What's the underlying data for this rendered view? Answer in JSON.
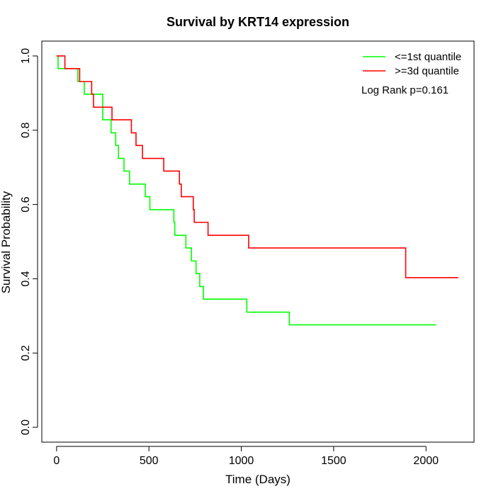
{
  "chart_data": {
    "type": "line",
    "title": "Survival by KRT14 expression",
    "xlabel": "Time (Days)",
    "ylabel": "Survival Probability",
    "xlim": [
      -80,
      2260
    ],
    "ylim": [
      -0.04,
      1.04
    ],
    "xticks": [
      0,
      500,
      1000,
      1500,
      2000
    ],
    "yticks": [
      0.0,
      0.2,
      0.4,
      0.6,
      0.8,
      1.0
    ],
    "xtick_labels": [
      "0",
      "500",
      "1000",
      "1500",
      "2000"
    ],
    "ytick_labels": [
      "0.0",
      "0.2",
      "0.4",
      "0.6",
      "0.8",
      "1.0"
    ],
    "grid": false,
    "legend_position": "top-right",
    "annotation": "Log Rank p=0.161",
    "series": [
      {
        "name": "<=1st quantile",
        "color": "#00ff00",
        "step": true,
        "points": [
          [
            0,
            1.0
          ],
          [
            8,
            0.966
          ],
          [
            115,
            0.931
          ],
          [
            150,
            0.897
          ],
          [
            250,
            0.828
          ],
          [
            295,
            0.793
          ],
          [
            320,
            0.759
          ],
          [
            335,
            0.724
          ],
          [
            365,
            0.69
          ],
          [
            395,
            0.655
          ],
          [
            480,
            0.621
          ],
          [
            505,
            0.586
          ],
          [
            635,
            0.552
          ],
          [
            640,
            0.517
          ],
          [
            700,
            0.483
          ],
          [
            730,
            0.448
          ],
          [
            755,
            0.414
          ],
          [
            775,
            0.379
          ],
          [
            795,
            0.345
          ],
          [
            1030,
            0.31
          ],
          [
            1260,
            0.276
          ],
          [
            2055,
            0.276
          ]
        ]
      },
      {
        "name": ">=3d quantile",
        "color": "#ff0000",
        "step": true,
        "points": [
          [
            0,
            1.0
          ],
          [
            45,
            0.966
          ],
          [
            125,
            0.931
          ],
          [
            190,
            0.897
          ],
          [
            200,
            0.862
          ],
          [
            300,
            0.828
          ],
          [
            405,
            0.793
          ],
          [
            430,
            0.759
          ],
          [
            465,
            0.724
          ],
          [
            580,
            0.69
          ],
          [
            665,
            0.655
          ],
          [
            675,
            0.621
          ],
          [
            740,
            0.586
          ],
          [
            745,
            0.552
          ],
          [
            820,
            0.517
          ],
          [
            1040,
            0.483
          ],
          [
            1890,
            0.403
          ],
          [
            2175,
            0.403
          ]
        ]
      }
    ]
  }
}
